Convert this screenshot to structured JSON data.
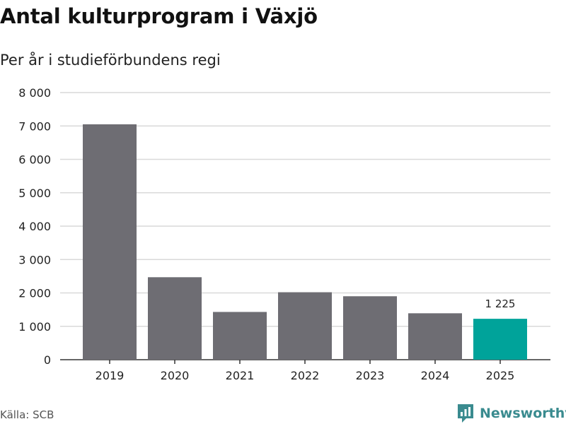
{
  "title": "Antal kulturprogram i Växjö",
  "subtitle": "Per år i studieförbundens regi",
  "source": "Källa: SCB",
  "brand": {
    "name": "Newsworthy",
    "icon": "newsworthy-logo-icon",
    "color": "#3a8b8f"
  },
  "colors": {
    "bar": "#6e6d73",
    "highlight": "#00a39a",
    "grid": "#d9d9d9",
    "axis": "#333333"
  },
  "chart_data": {
    "type": "bar",
    "categories": [
      "2019",
      "2020",
      "2021",
      "2022",
      "2023",
      "2024",
      "2025"
    ],
    "values": [
      7050,
      2470,
      1430,
      2020,
      1900,
      1390,
      1225
    ],
    "highlight_index": 6,
    "data_labels": [
      {
        "index": 6,
        "text": "1 225"
      }
    ],
    "ylim": [
      0,
      8000
    ],
    "yticks": [
      0,
      1000,
      2000,
      3000,
      4000,
      5000,
      6000,
      7000,
      8000
    ],
    "ytick_labels": [
      "0",
      "1 000",
      "2 000",
      "3 000",
      "4 000",
      "5 000",
      "6 000",
      "7 000",
      "8 000"
    ],
    "grid": true,
    "legend": "none"
  }
}
